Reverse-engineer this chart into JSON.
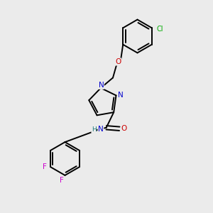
{
  "bg_color": "#ebebeb",
  "bond_color": "#000000",
  "atom_colors": {
    "N": "#0000cc",
    "O": "#cc0000",
    "Cl": "#00aa00",
    "F": "#cc00cc",
    "H": "#1a7a7a"
  },
  "lw": 1.4
}
